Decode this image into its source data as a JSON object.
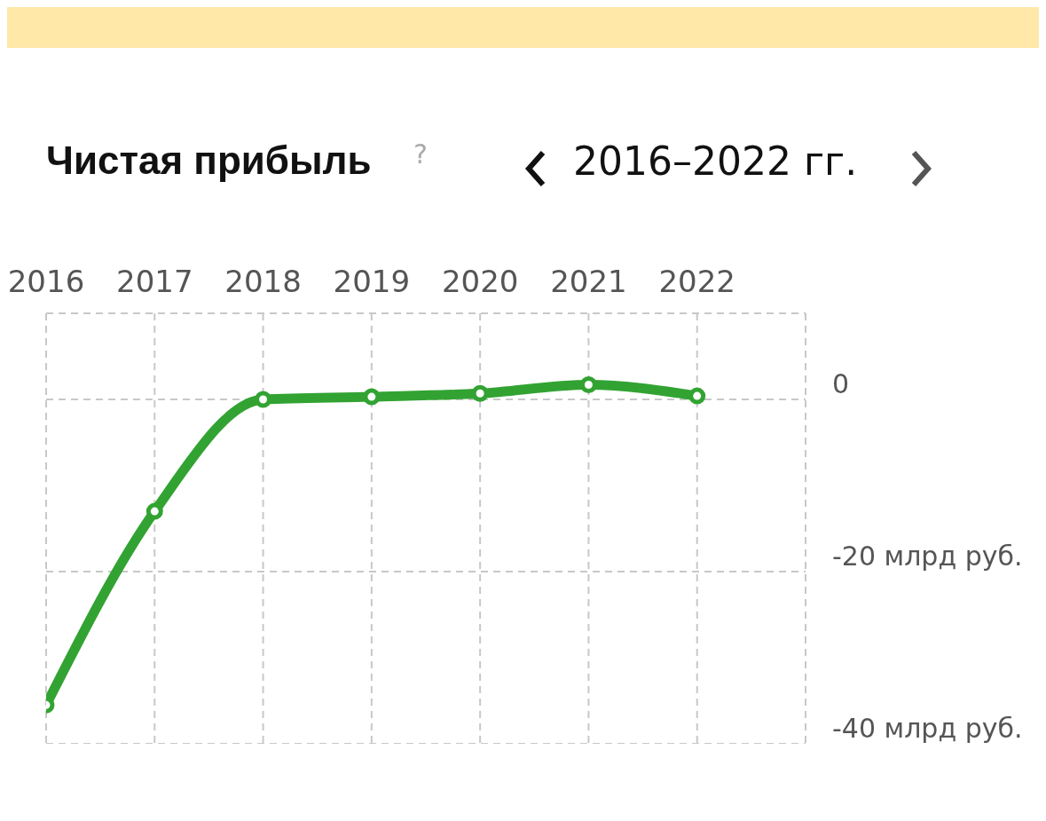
{
  "chart_data": {
    "type": "line",
    "title": "Чистая прибыль",
    "subtitle": "2016–2022 гг.",
    "categories": [
      "2016",
      "2017",
      "2018",
      "2019",
      "2020",
      "2021",
      "2022"
    ],
    "series": [
      {
        "color": "#32a332",
        "values": [
          -35.5,
          -13,
          0,
          0.3,
          0.7,
          1.7,
          0.4
        ]
      }
    ],
    "ylim": [
      -40,
      10
    ],
    "yticks": [
      {
        "value": 0,
        "label": "0"
      },
      {
        "value": -20,
        "label": "-20 млрд руб."
      },
      {
        "value": -40,
        "label": "-40 млрд руб."
      }
    ],
    "annotations": [
      "?"
    ],
    "grid": true,
    "marker": "circle",
    "line_style": "solid"
  }
}
